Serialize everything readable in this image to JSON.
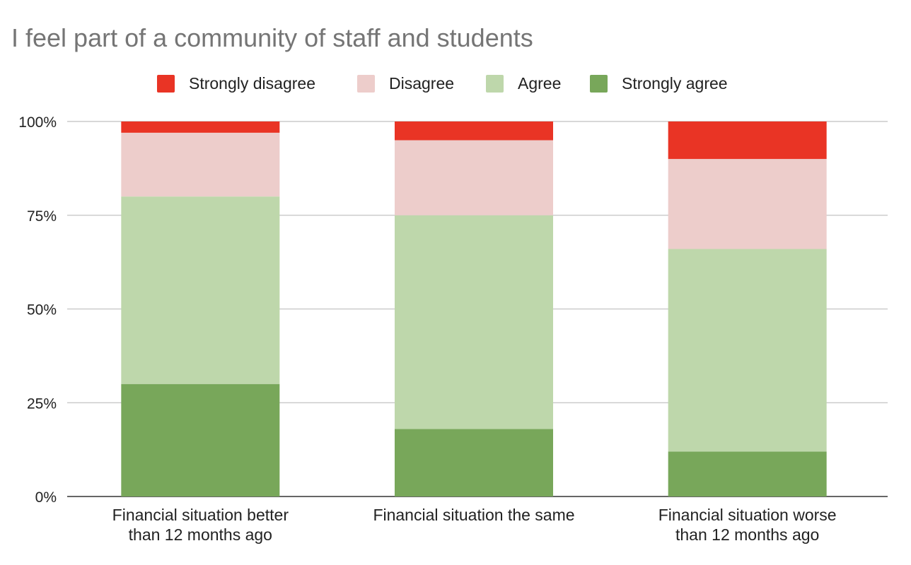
{
  "chart_data": {
    "type": "bar",
    "stacked": true,
    "percent": true,
    "title": "I feel part of a community of staff and students",
    "xlabel": "",
    "ylabel": "",
    "ylim": [
      0,
      100
    ],
    "yticks": [
      "0%",
      "25%",
      "50%",
      "75%",
      "100%"
    ],
    "grid": true,
    "legend_position": "top",
    "categories": [
      [
        "Financial situation better",
        "than 12 months ago"
      ],
      [
        "Financial situation the same"
      ],
      [
        "Financial situation worse",
        "than 12 months ago"
      ]
    ],
    "series": [
      {
        "name": "Strongly agree",
        "color": "#78a75a",
        "values": [
          30,
          18,
          12
        ]
      },
      {
        "name": "Agree",
        "color": "#bed7ab",
        "values": [
          50,
          57,
          54
        ]
      },
      {
        "name": "Disagree",
        "color": "#edcdcb",
        "values": [
          17,
          20,
          24
        ]
      },
      {
        "name": "Strongly disagree",
        "color": "#e93425",
        "values": [
          3,
          5,
          10
        ]
      }
    ],
    "legend_order": [
      "Strongly disagree",
      "Disagree",
      "Agree",
      "Strongly agree"
    ]
  }
}
